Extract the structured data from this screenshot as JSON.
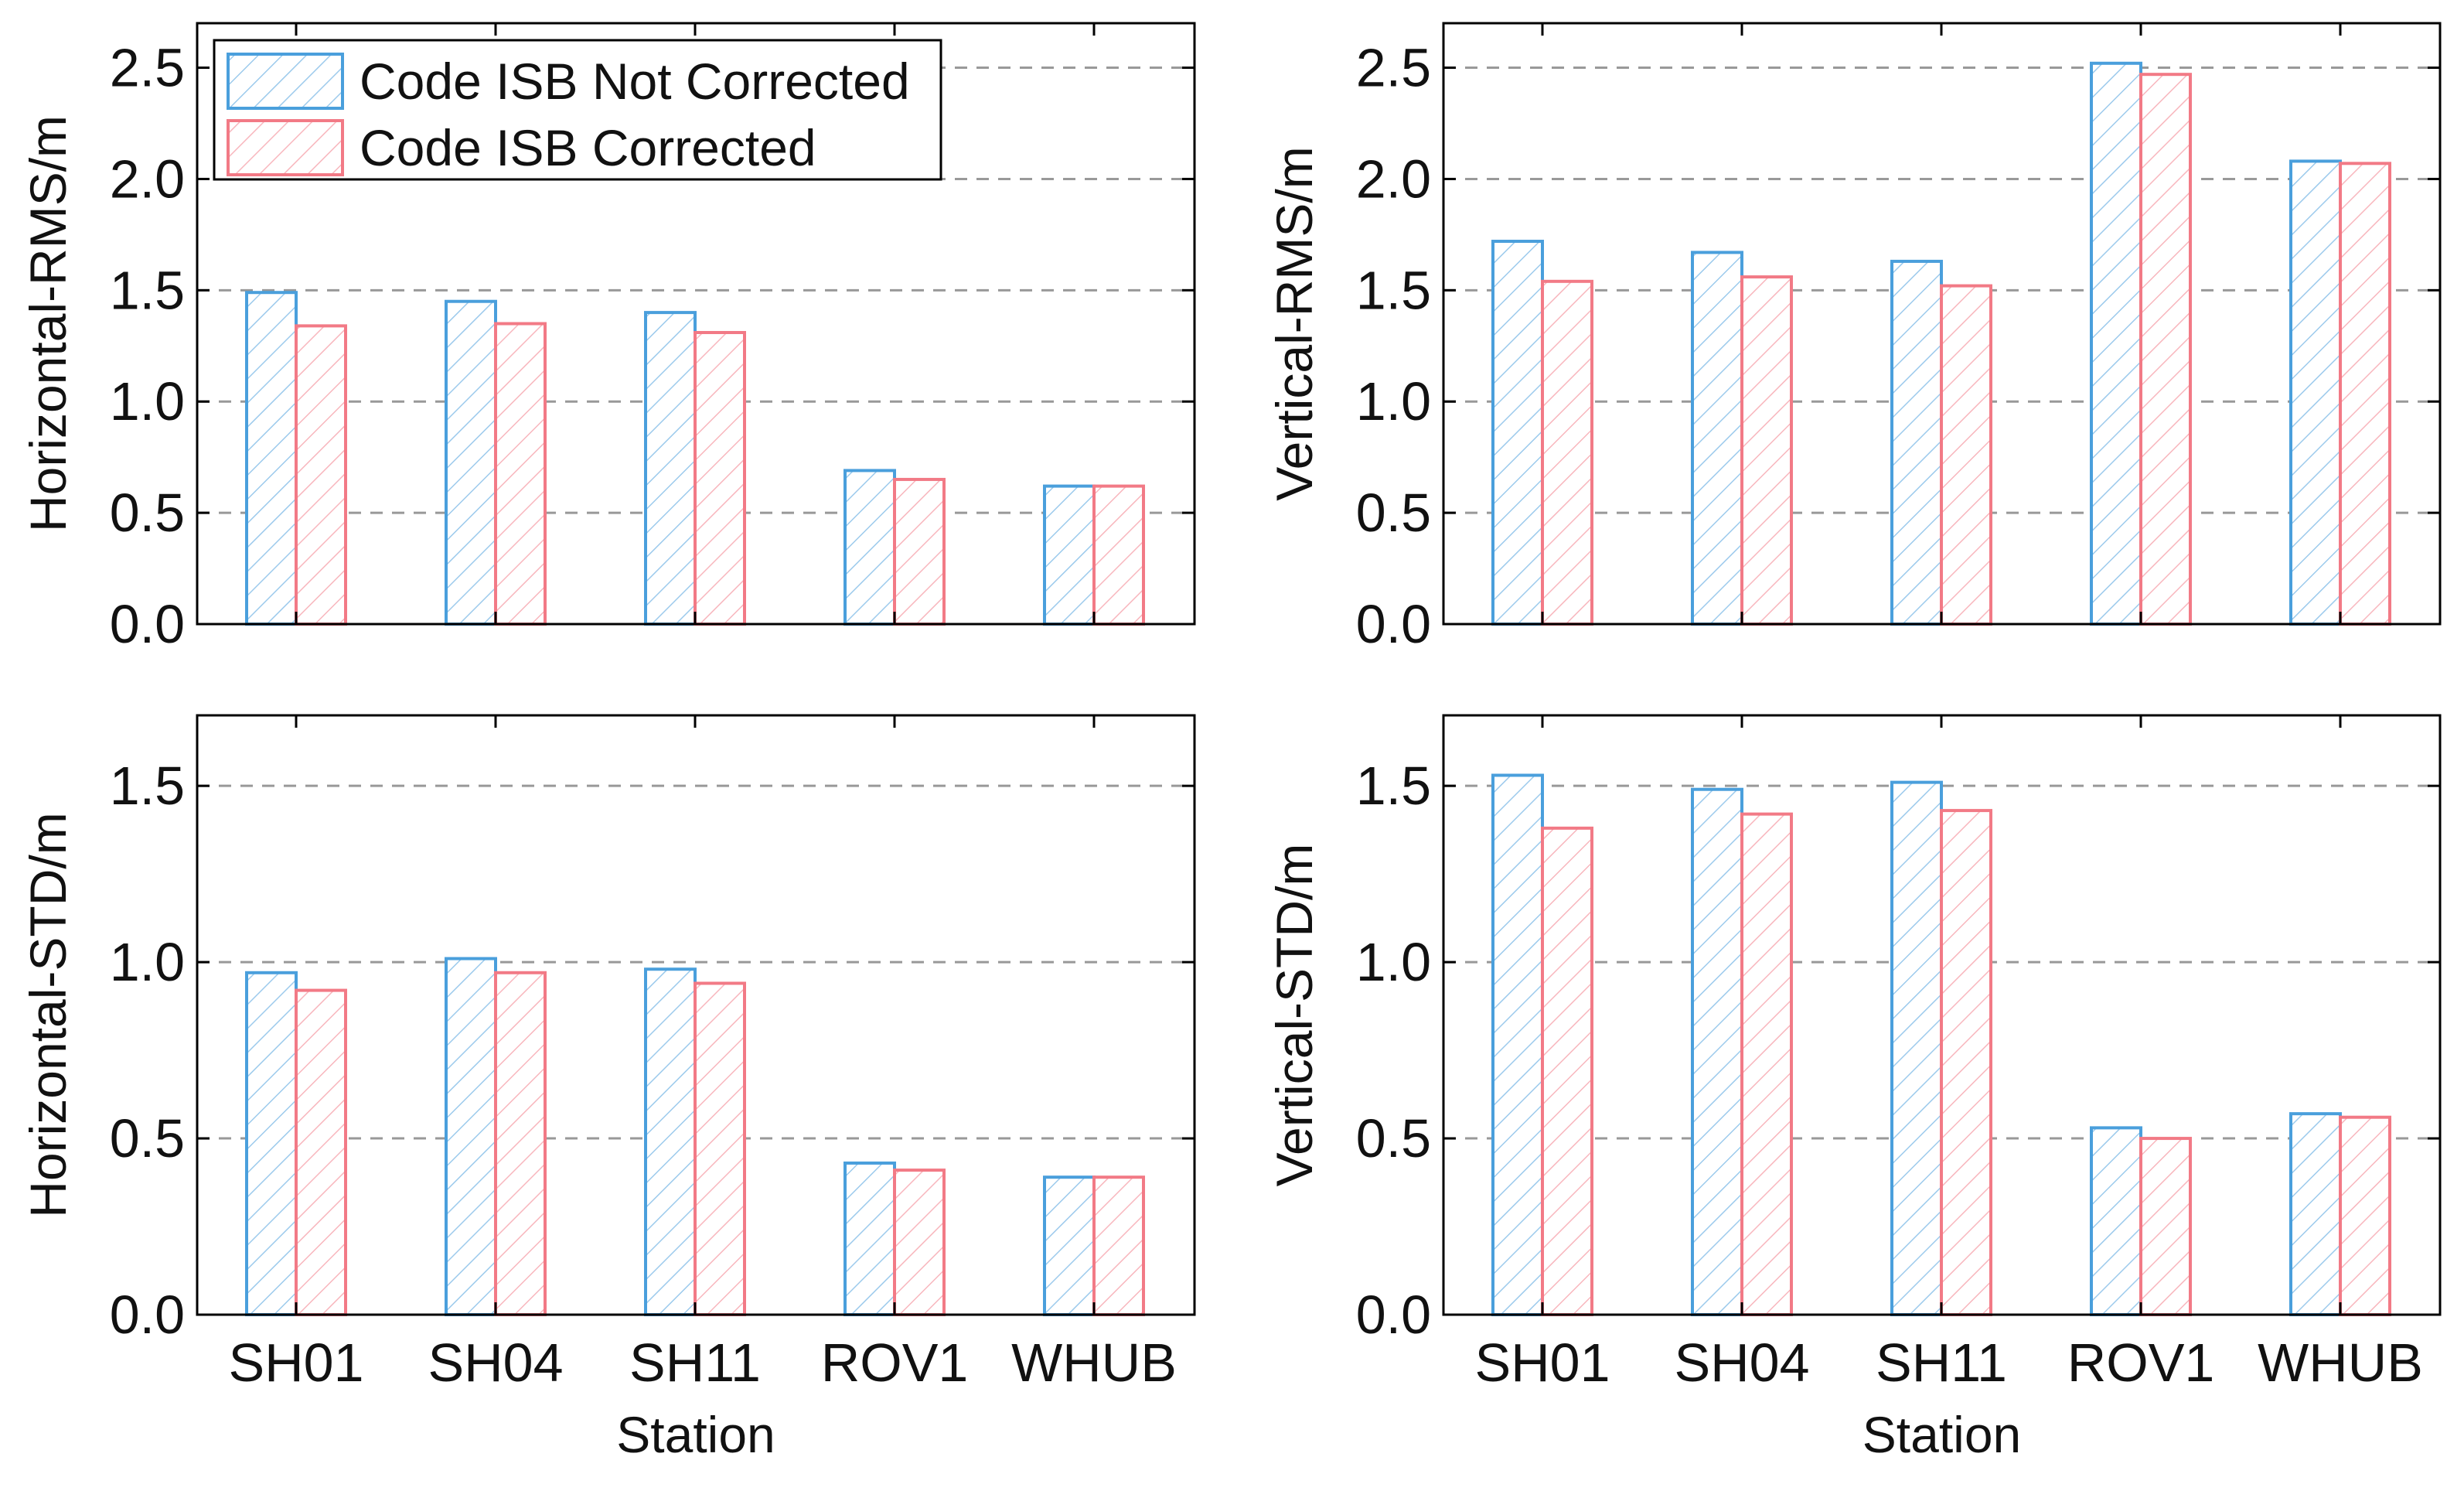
{
  "colors": {
    "not_corrected": "#4a9fdc",
    "corrected": "#f27a86",
    "grid": "#999999",
    "axis": "#000000"
  },
  "legend": {
    "items": [
      {
        "label": "Code ISB Not Corrected",
        "series": "not_corrected"
      },
      {
        "label": "Code ISB Corrected",
        "series": "corrected"
      }
    ]
  },
  "chart_data": [
    {
      "type": "bar",
      "panel": "top-left",
      "categories": [
        "SH01",
        "SH04",
        "SH11",
        "ROV1",
        "WHUB"
      ],
      "series": [
        {
          "name": "Code ISB Not Corrected",
          "key": "not_corrected",
          "values": [
            1.49,
            1.45,
            1.4,
            0.69,
            0.62
          ]
        },
        {
          "name": "Code ISB Corrected",
          "key": "corrected",
          "values": [
            1.34,
            1.35,
            1.31,
            0.65,
            0.62
          ]
        }
      ],
      "xlabel": "",
      "ylabel": "Horizontal-RMS/m",
      "ylim": [
        0,
        2.7
      ],
      "yticks": [
        "0.0",
        "0.5",
        "1.0",
        "1.5",
        "2.0",
        "2.5"
      ],
      "ytick_values": [
        0,
        0.5,
        1.0,
        1.5,
        2.0,
        2.5
      ],
      "grid": true,
      "legend": "top-left",
      "show_xticklabels": false
    },
    {
      "type": "bar",
      "panel": "top-right",
      "categories": [
        "SH01",
        "SH04",
        "SH11",
        "ROV1",
        "WHUB"
      ],
      "series": [
        {
          "name": "Code ISB Not Corrected",
          "key": "not_corrected",
          "values": [
            1.72,
            1.67,
            1.63,
            2.52,
            2.08
          ]
        },
        {
          "name": "Code ISB Corrected",
          "key": "corrected",
          "values": [
            1.54,
            1.56,
            1.52,
            2.47,
            2.07
          ]
        }
      ],
      "xlabel": "",
      "ylabel": "Vertical-RMS/m",
      "ylim": [
        0,
        2.7
      ],
      "yticks": [
        "0.0",
        "0.5",
        "1.0",
        "1.5",
        "2.0",
        "2.5"
      ],
      "ytick_values": [
        0,
        0.5,
        1.0,
        1.5,
        2.0,
        2.5
      ],
      "grid": true,
      "legend": "none",
      "show_xticklabels": false
    },
    {
      "type": "bar",
      "panel": "bottom-left",
      "categories": [
        "SH01",
        "SH04",
        "SH11",
        "ROV1",
        "WHUB"
      ],
      "series": [
        {
          "name": "Code ISB Not Corrected",
          "key": "not_corrected",
          "values": [
            0.97,
            1.01,
            0.98,
            0.43,
            0.39
          ]
        },
        {
          "name": "Code ISB Corrected",
          "key": "corrected",
          "values": [
            0.92,
            0.97,
            0.94,
            0.41,
            0.39
          ]
        }
      ],
      "xlabel": "Station",
      "ylabel": "Horizontal-STD/m",
      "ylim": [
        0,
        1.7
      ],
      "yticks": [
        "0.0",
        "0.5",
        "1.0",
        "1.5"
      ],
      "ytick_values": [
        0,
        0.5,
        1.0,
        1.5
      ],
      "grid": true,
      "legend": "none",
      "show_xticklabels": true
    },
    {
      "type": "bar",
      "panel": "bottom-right",
      "categories": [
        "SH01",
        "SH04",
        "SH11",
        "ROV1",
        "WHUB"
      ],
      "series": [
        {
          "name": "Code ISB Not Corrected",
          "key": "not_corrected",
          "values": [
            1.53,
            1.49,
            1.51,
            0.53,
            0.57
          ]
        },
        {
          "name": "Code ISB Corrected",
          "key": "corrected",
          "values": [
            1.38,
            1.42,
            1.43,
            0.5,
            0.56
          ]
        }
      ],
      "xlabel": "Station",
      "ylabel": "Vertical-STD/m",
      "ylim": [
        0,
        1.7
      ],
      "yticks": [
        "0.0",
        "0.5",
        "1.0",
        "1.5"
      ],
      "ytick_values": [
        0,
        0.5,
        1.0,
        1.5
      ],
      "grid": true,
      "legend": "none",
      "show_xticklabels": true
    }
  ]
}
